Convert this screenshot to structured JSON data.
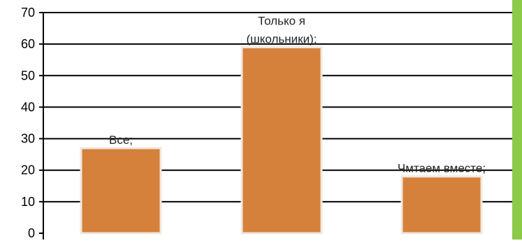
{
  "chart_data": {
    "type": "bar",
    "categories": [
      "Все;",
      "Только я (школьники);",
      "Чмтаем вместе;"
    ],
    "data_labels": [
      [
        "Все;"
      ],
      [
        "Только я",
        "(школьники);"
      ],
      [
        "Чмтаем вместе;"
      ]
    ],
    "values": [
      27,
      59,
      18
    ],
    "ylim": [
      0,
      70
    ],
    "yticks": [
      "0",
      "10",
      "20",
      "30",
      "40",
      "50",
      "60",
      "70"
    ],
    "grid": true,
    "title": "",
    "xlabel": "",
    "ylabel": ""
  },
  "colors": {
    "bar_fill": "#D5803B",
    "bar_outline": "#F2E7DF",
    "gridline": "#000000",
    "side_accent": "#8CCB48"
  }
}
